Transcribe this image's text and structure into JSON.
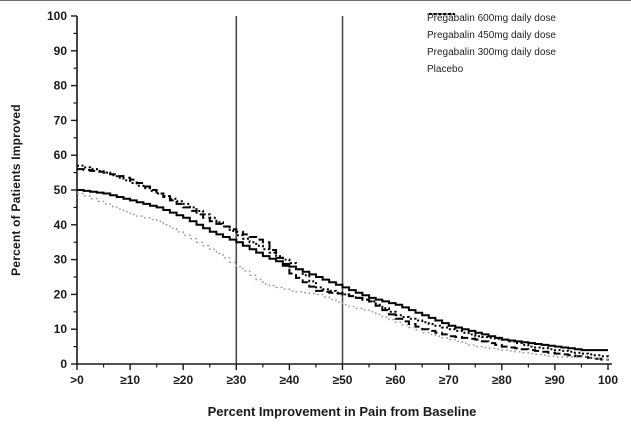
{
  "chart_data": {
    "type": "line",
    "title": "",
    "xlabel": "Percent Improvement in Pain from Baseline",
    "ylabel": "Percent of Patients Improved",
    "xlim": [
      0,
      100
    ],
    "ylim": [
      0,
      100
    ],
    "grid": false,
    "legend_position": "top-right",
    "x_major_ticks": [
      0,
      10,
      20,
      30,
      40,
      50,
      60,
      70,
      80,
      90,
      100
    ],
    "x_tick_labels": [
      ">0",
      "≥10",
      "≥20",
      "≥30",
      "≥40",
      "≥50",
      "≥60",
      "≥70",
      "≥80",
      "≥90",
      "100"
    ],
    "y_major_ticks": [
      0,
      10,
      20,
      30,
      40,
      50,
      60,
      70,
      80,
      90,
      100
    ],
    "y_tick_labels": [
      "0",
      "10",
      "20",
      "30",
      "40",
      "50",
      "60",
      "70",
      "80",
      "90",
      "100"
    ],
    "minor_tick_step": 5,
    "reference_lines_x": [
      30,
      50
    ],
    "reference_line_color": "#4d4d4d",
    "axis_color": "#1a1a1a",
    "x": [
      0,
      5,
      10,
      15,
      20,
      25,
      30,
      35,
      40,
      45,
      50,
      55,
      60,
      65,
      70,
      75,
      80,
      85,
      90,
      95,
      100
    ],
    "series": [
      {
        "name": "Pregabalin 600mg daily dose",
        "style": "solid",
        "color": "#000000",
        "width": 2,
        "values": [
          50,
          49,
          47,
          45,
          42,
          38,
          35,
          31,
          28,
          25,
          22,
          19,
          17,
          14,
          11,
          9,
          7,
          6,
          5,
          4,
          4
        ]
      },
      {
        "name": "Pregabalin 450mg daily dose",
        "style": "dotted",
        "color": "#000000",
        "width": 2,
        "values": [
          57,
          55,
          52,
          49,
          46,
          42,
          37,
          33,
          29,
          22,
          20,
          18,
          14,
          12,
          10,
          8,
          7,
          5,
          4,
          3,
          2
        ]
      },
      {
        "name": "Pregabalin 300mg daily dose",
        "style": "dashed",
        "color": "#000000",
        "width": 2,
        "values": [
          56,
          55,
          53,
          49,
          45,
          41,
          38,
          35,
          26,
          21,
          20,
          18,
          13,
          10,
          8,
          7,
          5,
          4,
          3,
          2,
          1
        ]
      },
      {
        "name": "Placebo",
        "style": "dotted-fine",
        "color": "#9a9a9a",
        "width": 1.4,
        "values": [
          49,
          46,
          43,
          41,
          37,
          33,
          28,
          23,
          21,
          20,
          17,
          15,
          12,
          9,
          7,
          5,
          4,
          3,
          2,
          2,
          1
        ]
      }
    ]
  }
}
